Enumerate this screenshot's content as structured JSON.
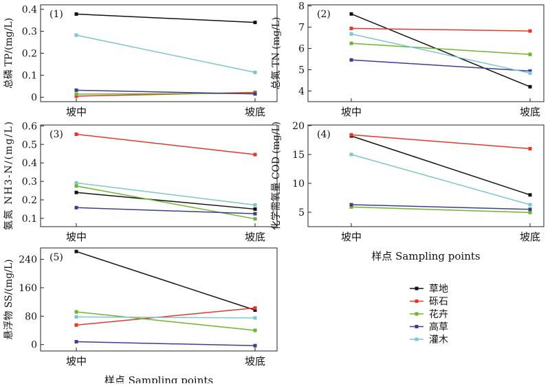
{
  "legend_position": "bottom-right",
  "series_styles": [
    {
      "name": "草地",
      "color": "#111111"
    },
    {
      "name": "砾石",
      "color": "#e8342a"
    },
    {
      "name": "花卉",
      "color": "#6cb52d"
    },
    {
      "name": "高草",
      "color": "#3d3d8f"
    },
    {
      "name": "灌木",
      "color": "#7cc6cc"
    }
  ],
  "chart_data": [
    {
      "type": "line",
      "panel_label": "(1)",
      "categories": [
        "坡中",
        "坡底"
      ],
      "ylabel": "总磷 TP/(mg/L)",
      "xlabel": "",
      "ylim": [
        -0.02,
        0.42
      ],
      "yticks": [
        "0",
        "0.1",
        "0.2",
        "0.3",
        "0.4"
      ],
      "series": [
        {
          "name": "草地",
          "values": [
            0.378,
            0.34
          ]
        },
        {
          "name": "砾石",
          "values": [
            0.005,
            0.022
          ]
        },
        {
          "name": "花卉",
          "values": [
            0.014,
            0.018
          ]
        },
        {
          "name": "高草",
          "values": [
            0.032,
            0.015
          ]
        },
        {
          "name": "灌木",
          "values": [
            0.282,
            0.113
          ]
        }
      ]
    },
    {
      "type": "line",
      "panel_label": "(2)",
      "categories": [
        "坡中",
        "坡底"
      ],
      "ylabel": "总氮 TN (mg/L)",
      "xlabel": "",
      "ylim": [
        3.5,
        8.05
      ],
      "yticks": [
        "4",
        "5",
        "6",
        "7",
        "8"
      ],
      "series": [
        {
          "name": "草地",
          "values": [
            7.62,
            4.2
          ]
        },
        {
          "name": "砾石",
          "values": [
            6.94,
            6.82
          ]
        },
        {
          "name": "花卉",
          "values": [
            6.24,
            5.72
          ]
        },
        {
          "name": "高草",
          "values": [
            5.46,
            4.94
          ]
        },
        {
          "name": "灌木",
          "values": [
            6.68,
            4.84
          ]
        }
      ]
    },
    {
      "type": "line",
      "panel_label": "(3)",
      "categories": [
        "坡中",
        "坡底"
      ],
      "ylabel": "氨氮 NH3-N/(mg/L)",
      "xlabel": "",
      "ylim": [
        0.055,
        0.605
      ],
      "yticks": [
        "0.1",
        "0.2",
        "0.3",
        "0.4",
        "0.5",
        "0.6"
      ],
      "series": [
        {
          "name": "草地",
          "values": [
            0.24,
            0.15
          ]
        },
        {
          "name": "砾石",
          "values": [
            0.555,
            0.445
          ]
        },
        {
          "name": "花卉",
          "values": [
            0.275,
            0.097
          ]
        },
        {
          "name": "高草",
          "values": [
            0.158,
            0.125
          ]
        },
        {
          "name": "灌木",
          "values": [
            0.292,
            0.172
          ]
        }
      ]
    },
    {
      "type": "line",
      "panel_label": "(4)",
      "categories": [
        "坡中",
        "坡底"
      ],
      "ylabel": "化学需氧量 COD (mg/L)",
      "xlabel": "样点 Sampling points",
      "ylim": [
        2.5,
        20.1
      ],
      "yticks": [
        "5",
        "10",
        "15",
        "20"
      ],
      "series": [
        {
          "name": "草地",
          "values": [
            18.2,
            8.0
          ]
        },
        {
          "name": "砾石",
          "values": [
            18.4,
            16.0
          ]
        },
        {
          "name": "花卉",
          "values": [
            5.9,
            4.95
          ]
        },
        {
          "name": "高草",
          "values": [
            6.3,
            5.5
          ]
        },
        {
          "name": "灌木",
          "values": [
            15.0,
            6.3
          ]
        }
      ]
    },
    {
      "type": "line",
      "panel_label": "(5)",
      "categories": [
        "坡中",
        "坡底"
      ],
      "ylabel": "悬浮物 SS/(mg/L)",
      "xlabel": "样点 Sampling points",
      "ylim": [
        -18,
        272
      ],
      "yticks": [
        "0",
        "80",
        "160",
        "240"
      ],
      "series": [
        {
          "name": "草地",
          "values": [
            262,
            97
          ]
        },
        {
          "name": "砾石",
          "values": [
            55,
            103
          ]
        },
        {
          "name": "花卉",
          "values": [
            92,
            40
          ]
        },
        {
          "name": "高草",
          "values": [
            8,
            -3
          ]
        },
        {
          "name": "灌木",
          "values": [
            78,
            75
          ]
        }
      ]
    }
  ]
}
